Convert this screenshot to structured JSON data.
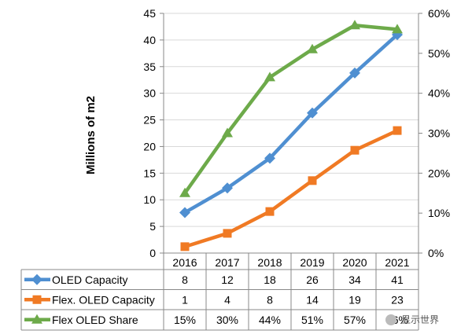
{
  "chart_data": {
    "type": "line",
    "categories": [
      "2016",
      "2017",
      "2018",
      "2019",
      "2020",
      "2021"
    ],
    "ylabel": "Millions of m2",
    "ylim": [
      0,
      45
    ],
    "yticks": [
      "0",
      "5",
      "10",
      "15",
      "20",
      "25",
      "30",
      "35",
      "40",
      "45"
    ],
    "y2lim": [
      0,
      60
    ],
    "y2ticks": [
      "0%",
      "10%",
      "20%",
      "30%",
      "40%",
      "50%",
      "60%"
    ],
    "grid": "horizontal",
    "series": [
      {
        "name": "OLED Capacity",
        "axis": "left",
        "marker": "diamond",
        "color": "#4F8FD1",
        "values": [
          7.6,
          12.2,
          17.8,
          26.3,
          33.8,
          41.0
        ],
        "labels": [
          "8",
          "12",
          "18",
          "26",
          "34",
          "41"
        ]
      },
      {
        "name": "Flex. OLED Capacity",
        "axis": "left",
        "marker": "square",
        "color": "#F07A24",
        "values": [
          1.2,
          3.7,
          7.8,
          13.6,
          19.3,
          23.0
        ],
        "labels": [
          "1",
          "4",
          "8",
          "14",
          "19",
          "23"
        ]
      },
      {
        "name": "Flex OLED Share",
        "axis": "right",
        "marker": "triangle",
        "color": "#6DAA4A",
        "values": [
          15,
          30,
          44,
          51,
          57,
          56
        ],
        "labels": [
          "15%",
          "30%",
          "44%",
          "51%",
          "57%",
          "56%"
        ]
      }
    ]
  },
  "watermark": {
    "text": "显示世界"
  }
}
